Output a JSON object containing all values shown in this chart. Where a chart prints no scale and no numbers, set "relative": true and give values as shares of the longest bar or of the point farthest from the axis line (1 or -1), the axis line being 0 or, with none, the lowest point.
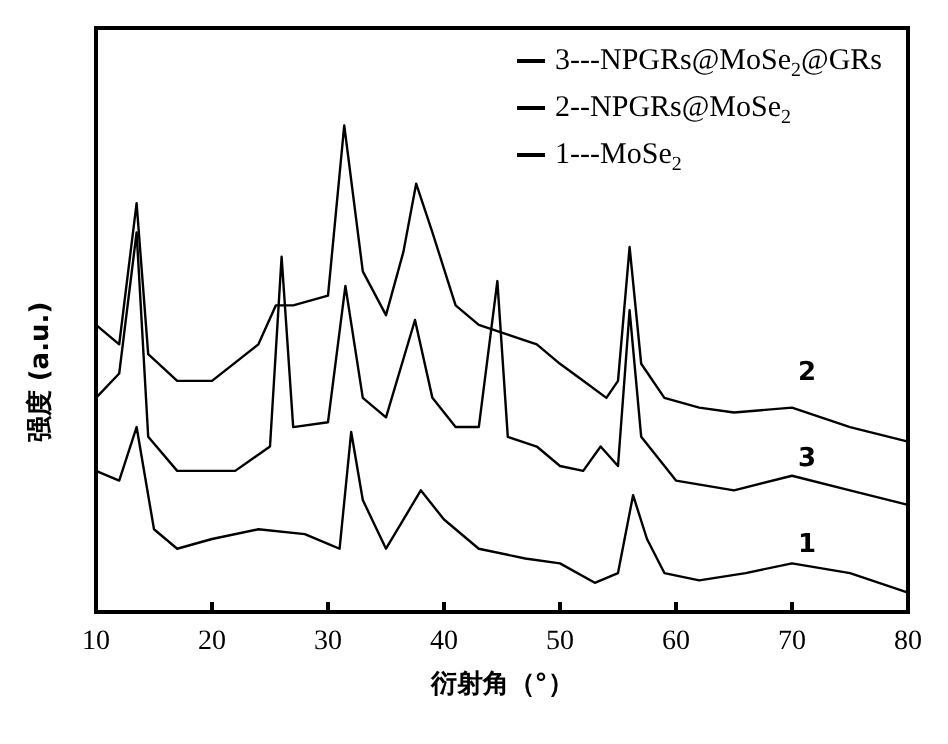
{
  "chart_data": {
    "type": "line",
    "relative": true,
    "xlabel": "衍射角（°）",
    "ylabel": "强度 (a.u.)",
    "xlim": [
      10,
      80
    ],
    "xticks": [
      10,
      20,
      30,
      40,
      50,
      60,
      70,
      80
    ],
    "legend": "top right",
    "grid": false,
    "marker": "none",
    "line_style": "solid",
    "annotations": [
      "2",
      "3",
      "1"
    ],
    "series": [
      {
        "name": "3---NPGRs@MoSe$_{2}$@GRs",
        "color": "#000000",
        "x": [
          10,
          12,
          13.5,
          14.5,
          17,
          22,
          25,
          26,
          27,
          30,
          31.5,
          33,
          35,
          37.5,
          39,
          41,
          43,
          44.6,
          45.5,
          48,
          50,
          52,
          53.5,
          55,
          56,
          57,
          60,
          65,
          70,
          75,
          80
        ],
        "values": [
          0.44,
          0.49,
          0.78,
          0.36,
          0.29,
          0.29,
          0.34,
          0.73,
          0.38,
          0.39,
          0.67,
          0.44,
          0.4,
          0.6,
          0.44,
          0.38,
          0.38,
          0.68,
          0.36,
          0.34,
          0.3,
          0.29,
          0.34,
          0.3,
          0.62,
          0.36,
          0.27,
          0.25,
          0.28,
          0.25,
          0.22
        ]
      },
      {
        "name": "2--NPGRs@MoSe$_{2}$",
        "color": "#000000",
        "x": [
          10,
          12,
          13.5,
          14.5,
          17,
          20,
          24,
          25.5,
          27,
          30,
          31.4,
          33,
          35,
          36.5,
          37.6,
          39,
          41,
          43,
          45.5,
          48,
          50,
          52,
          54,
          55,
          56,
          57,
          59,
          62,
          65,
          70,
          75,
          80
        ],
        "values": [
          0.59,
          0.55,
          0.84,
          0.53,
          0.475,
          0.475,
          0.55,
          0.63,
          0.63,
          0.65,
          1,
          0.7,
          0.61,
          0.74,
          0.88,
          0.78,
          0.63,
          0.59,
          0.57,
          0.55,
          0.51,
          0.475,
          0.44,
          0.475,
          0.75,
          0.51,
          0.44,
          0.42,
          0.41,
          0.42,
          0.38,
          0.35
        ]
      },
      {
        "name": "1---MoSe$_{2}$",
        "color": "#000000",
        "x": [
          10,
          12,
          13.5,
          15,
          17,
          20,
          24,
          28,
          30,
          31,
          32,
          33,
          35,
          37,
          38,
          40,
          43,
          47,
          50,
          53,
          55,
          56.3,
          57.5,
          59,
          62,
          66,
          70,
          75,
          80
        ],
        "values": [
          0.29,
          0.27,
          0.38,
          0.17,
          0.13,
          0.15,
          0.17,
          0.16,
          0.14,
          0.13,
          0.37,
          0.23,
          0.13,
          0.21,
          0.25,
          0.19,
          0.13,
          0.11,
          0.1,
          0.06,
          0.08,
          0.24,
          0.15,
          0.08,
          0.065,
          0.08,
          0.1,
          0.08,
          0.04
        ]
      }
    ]
  }
}
